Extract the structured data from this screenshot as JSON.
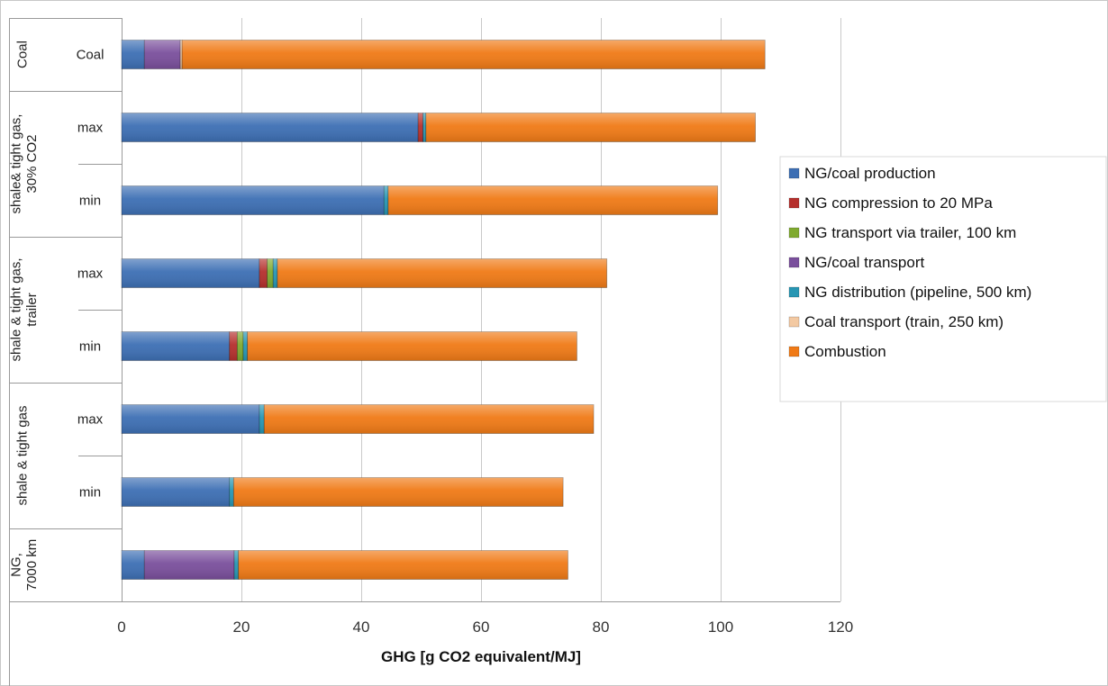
{
  "chart_data": {
    "type": "bar",
    "orientation": "horizontal",
    "stacked": true,
    "title": "",
    "xlabel": "GHG [g CO2 equivalent/MJ]",
    "ylabel": "",
    "xlim": [
      0,
      120
    ],
    "x_ticks": [
      0,
      20,
      40,
      60,
      80,
      100,
      120
    ],
    "grid": "vertical",
    "legend_position": "right",
    "groups": [
      {
        "label": "Coal",
        "rows": [
          "Coal"
        ]
      },
      {
        "label": "shale& tight gas, 30% CO2",
        "rows": [
          "max",
          "min"
        ]
      },
      {
        "label": "shale & tight gas, trailer",
        "rows": [
          "max",
          "min"
        ]
      },
      {
        "label": "shale & tight gas",
        "rows": [
          "max",
          "min"
        ]
      },
      {
        "label": "NG, 7000 km",
        "rows": [
          ""
        ]
      }
    ],
    "categories": [
      "Coal",
      "shale& tight gas, 30% CO2 — max",
      "shale& tight gas, 30% CO2 — min",
      "shale & tight gas, trailer — max",
      "shale & tight gas, trailer — min",
      "shale & tight gas — max",
      "shale & tight gas — min",
      "NG, 7000 km"
    ],
    "series": [
      {
        "name": "NG/coal production",
        "color": "#3d6fb4",
        "values": [
          3.8,
          49.5,
          43.8,
          23.0,
          18.0,
          23.0,
          18.0,
          3.8
        ]
      },
      {
        "name": "NG compression to 20 MPa",
        "color": "#b5302d",
        "values": [
          0,
          0.8,
          0,
          1.3,
          1.3,
          0,
          0,
          0
        ]
      },
      {
        "name": "NG transport via trailer, 100 km",
        "color": "#7faa2f",
        "values": [
          0,
          0,
          0,
          1.0,
          1.0,
          0,
          0,
          0
        ]
      },
      {
        "name": "NG/coal transport",
        "color": "#7a4f9c",
        "values": [
          6.0,
          0,
          0,
          0,
          0,
          0,
          0,
          15.0
        ]
      },
      {
        "name": "NG distribution (pipeline, 500 km)",
        "color": "#2796b3",
        "values": [
          0,
          0.5,
          0.7,
          0.7,
          0.7,
          0.8,
          0.7,
          0.7
        ]
      },
      {
        "name": "Coal transport (train, 250 km)",
        "color": "#f3c9a2",
        "values": [
          0.3,
          0,
          0,
          0,
          0,
          0,
          0,
          0
        ]
      },
      {
        "name": "Combustion",
        "color": "#f07a16",
        "values": [
          97.3,
          55.0,
          55.0,
          55.0,
          55.0,
          55.0,
          55.0,
          55.0
        ]
      }
    ]
  }
}
